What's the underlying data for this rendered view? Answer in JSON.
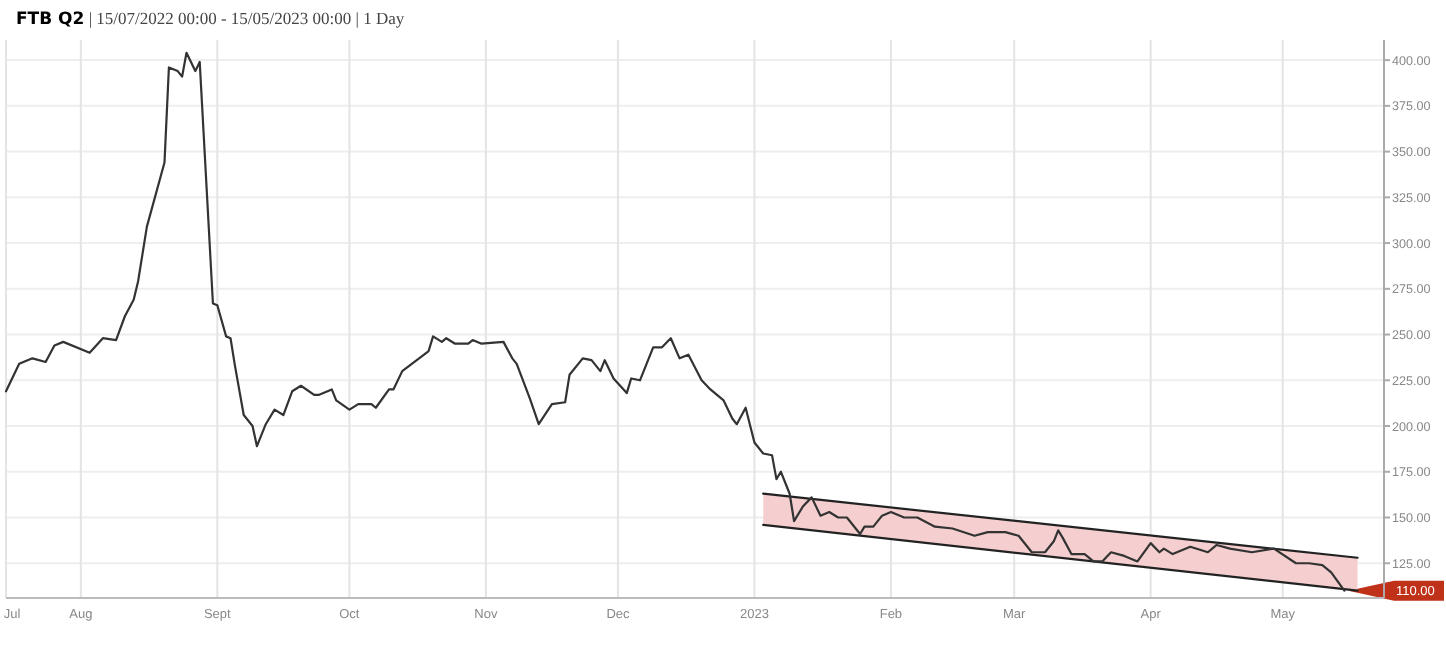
{
  "chart_data": {
    "type": "line",
    "title": "FTB Q2",
    "subtitle": "| 15/07/2022 00:00 - 15/05/2023 00:00 | 1 Day",
    "xlim": [
      "2022-07-15",
      "2023-05-24"
    ],
    "ylim": [
      106,
      411
    ],
    "xticks": [
      {
        "value": "2022-07-15",
        "label": "Jul"
      },
      {
        "value": "2022-08-01",
        "label": "Aug"
      },
      {
        "value": "2022-09-01",
        "label": "Sept"
      },
      {
        "value": "2022-10-01",
        "label": "Oct"
      },
      {
        "value": "2022-11-01",
        "label": "Nov"
      },
      {
        "value": "2022-12-01",
        "label": "Dec"
      },
      {
        "value": "2023-01-01",
        "label": "2023"
      },
      {
        "value": "2023-02-01",
        "label": "Feb"
      },
      {
        "value": "2023-03-01",
        "label": "Mar"
      },
      {
        "value": "2023-04-01",
        "label": "Apr"
      },
      {
        "value": "2023-05-01",
        "label": "May"
      }
    ],
    "yticks": [
      {
        "value": 125,
        "label": "125.00"
      },
      {
        "value": 150,
        "label": "150.00"
      },
      {
        "value": 175,
        "label": "175.00"
      },
      {
        "value": 200,
        "label": "200.00"
      },
      {
        "value": 225,
        "label": "225.00"
      },
      {
        "value": 250,
        "label": "250.00"
      },
      {
        "value": 275,
        "label": "275.00"
      },
      {
        "value": 300,
        "label": "300.00"
      },
      {
        "value": 325,
        "label": "325.00"
      },
      {
        "value": 350,
        "label": "350.00"
      },
      {
        "value": 375,
        "label": "375.00"
      },
      {
        "value": 400,
        "label": "400.00"
      }
    ],
    "grid": true,
    "line_style": "solid",
    "marker": "none",
    "annotations": [
      {
        "text": "110.00",
        "x": "2023-05-15",
        "y": 110
      }
    ],
    "series": [
      {
        "color": "#222222",
        "x": [
          "2023-01-03",
          "2023-05-18"
        ],
        "values": [
          163,
          128
        ],
        "lower": [
          146,
          110
        ],
        "upper": [
          163,
          128
        ]
      },
      {
        "color": "#222222",
        "x": [
          "2023-01-03",
          "2023-05-18"
        ],
        "values": [
          146,
          110
        ]
      },
      {
        "color": "#333333",
        "x": [
          "2022-07-15",
          "2022-07-18",
          "2022-07-21",
          "2022-07-24",
          "2022-07-26",
          "2022-07-28",
          "2022-08-03",
          "2022-08-06",
          "2022-08-09",
          "2022-08-11",
          "2022-08-13",
          "2022-08-14",
          "2022-08-16",
          "2022-08-20",
          "2022-08-21",
          "2022-08-23",
          "2022-08-24",
          "2022-08-25",
          "2022-08-27",
          "2022-08-28",
          "2022-08-31",
          "2022-09-01",
          "2022-09-03",
          "2022-09-04",
          "2022-09-05",
          "2022-09-07",
          "2022-09-09",
          "2022-09-10",
          "2022-09-12",
          "2022-09-14",
          "2022-09-16",
          "2022-09-18",
          "2022-09-20",
          "2022-09-23",
          "2022-09-24",
          "2022-09-27",
          "2022-09-28",
          "2022-10-01",
          "2022-10-03",
          "2022-10-06",
          "2022-10-07",
          "2022-10-10",
          "2022-10-11",
          "2022-10-13",
          "2022-10-19",
          "2022-10-20",
          "2022-10-22",
          "2022-10-23",
          "2022-10-25",
          "2022-10-28",
          "2022-10-29",
          "2022-10-31",
          "2022-11-05",
          "2022-11-07",
          "2022-11-08",
          "2022-11-11",
          "2022-11-13",
          "2022-11-16",
          "2022-11-19",
          "2022-11-20",
          "2022-11-23",
          "2022-11-25",
          "2022-11-27",
          "2022-11-28",
          "2022-11-30",
          "2022-12-03",
          "2022-12-04",
          "2022-12-06",
          "2022-12-09",
          "2022-12-11",
          "2022-12-13",
          "2022-12-15",
          "2022-12-17",
          "2022-12-20",
          "2022-12-22",
          "2022-12-25",
          "2022-12-27",
          "2022-12-28",
          "2022-12-30",
          "2023-01-01",
          "2023-01-03",
          "2023-01-05",
          "2023-01-06",
          "2023-01-07",
          "2023-01-09",
          "2023-01-10",
          "2023-01-12",
          "2023-01-14",
          "2023-01-16",
          "2023-01-18",
          "2023-01-20",
          "2023-01-22",
          "2023-01-25",
          "2023-01-26",
          "2023-01-28",
          "2023-01-30",
          "2023-02-01",
          "2023-02-04",
          "2023-02-07",
          "2023-02-11",
          "2023-02-15",
          "2023-02-20",
          "2023-02-23",
          "2023-02-27",
          "2023-03-02",
          "2023-03-05",
          "2023-03-08",
          "2023-03-10",
          "2023-03-11",
          "2023-03-12",
          "2023-03-14",
          "2023-03-17",
          "2023-03-19",
          "2023-03-21",
          "2023-03-23",
          "2023-03-26",
          "2023-03-29",
          "2023-04-01",
          "2023-04-03",
          "2023-04-04",
          "2023-04-06",
          "2023-04-10",
          "2023-04-14",
          "2023-04-16",
          "2023-04-19",
          "2023-04-24",
          "2023-04-29",
          "2023-05-04",
          "2023-05-07",
          "2023-05-10",
          "2023-05-12",
          "2023-05-15"
        ],
        "values": [
          219,
          234,
          237,
          235,
          244,
          246,
          240,
          248,
          247,
          260,
          269,
          279,
          309,
          344,
          396,
          394,
          391,
          404,
          394,
          399,
          267,
          266,
          249,
          248,
          233,
          206,
          200,
          189,
          201,
          209,
          206,
          219,
          222,
          217,
          217,
          220,
          214,
          209,
          212,
          212,
          210,
          220,
          220,
          230,
          241,
          249,
          246,
          248,
          245,
          245,
          247,
          245,
          246,
          237,
          234,
          215,
          201,
          212,
          213,
          228,
          237,
          236,
          230,
          236,
          226,
          218,
          226,
          225,
          243,
          243,
          248,
          237,
          239,
          225,
          220,
          214,
          204,
          201,
          210,
          191,
          185,
          184,
          171,
          175,
          163,
          148,
          156,
          161,
          151,
          153,
          150,
          150,
          141,
          145,
          145,
          151,
          153,
          150,
          150,
          145,
          144,
          140,
          142,
          142,
          140,
          131,
          131,
          137,
          143,
          139,
          130,
          130,
          126,
          126,
          131,
          129,
          126,
          136,
          131,
          133,
          130,
          134,
          131,
          135,
          133,
          131,
          133,
          125,
          125,
          124,
          120,
          110
        ]
      }
    ]
  }
}
